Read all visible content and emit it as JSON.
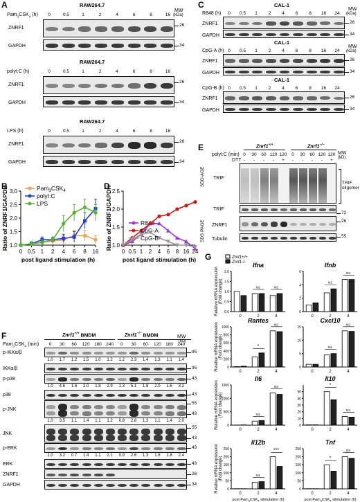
{
  "panelA": {
    "label": "A",
    "cell": "RAW264.7",
    "mw_header": "MW",
    "mw_unit": "(kDa)",
    "rows": [
      {
        "treatment": "Pam3CSK4 (h)",
        "times": [
          "0",
          "0.5",
          "1",
          "2",
          "4",
          "6",
          "8",
          "16"
        ],
        "ladder": [
          "26",
          "34"
        ],
        "intensity": [
          0.35,
          0.4,
          0.45,
          0.5,
          0.55,
          0.65,
          0.7,
          0.65
        ]
      },
      {
        "treatment": "polyI:C (h)",
        "times": [
          "0",
          "0.5",
          "1",
          "2",
          "4",
          "6",
          "8",
          "16"
        ],
        "ladder": [
          "26",
          "34"
        ],
        "intensity": [
          0.3,
          0.3,
          0.35,
          0.4,
          0.4,
          0.45,
          0.75,
          0.8
        ]
      },
      {
        "treatment": "LPS (h)",
        "times": [
          "0",
          "0.5",
          "1",
          "2",
          "4",
          "6",
          "8",
          "16"
        ],
        "ladder": [
          "26",
          "34"
        ],
        "intensity": [
          0.3,
          0.35,
          0.4,
          0.45,
          0.75,
          0.9,
          0.9,
          0.8
        ]
      }
    ],
    "znrf1": "ZNRF1",
    "gapdh": "GAPDH"
  },
  "panelB": {
    "label": "B",
    "ylabel": "Ratio of ZNRF1/GAPDH",
    "xlabel": "post ligand stimulation (h)",
    "yticks": [
      "1.0",
      "1.5",
      "2.0",
      "2.5",
      "3.0"
    ],
    "xticks": [
      "0",
      "0.5",
      "1",
      "2",
      "4",
      "6",
      "8",
      "16"
    ]
  },
  "panelC": {
    "label": "C",
    "cell": "CAL-1",
    "mw_header": "MW",
    "mw_unit": "(kDa)",
    "rows": [
      {
        "treatment": "R848 (h)",
        "times": [
          "0",
          "0.5",
          "1",
          "2",
          "4",
          "6",
          "8",
          "16",
          "24"
        ],
        "ladder": [
          "26",
          "34"
        ],
        "intensity": [
          0.3,
          0.35,
          0.4,
          0.6,
          0.7,
          0.6,
          0.5,
          0.45,
          0.4
        ]
      },
      {
        "treatment": "CpG-A (h)",
        "times": [
          "0",
          "0.5",
          "1",
          "2",
          "4",
          "6",
          "8",
          "16",
          "24"
        ],
        "ladder": [
          "26",
          "34"
        ],
        "intensity": [
          0.5,
          0.55,
          0.6,
          0.65,
          0.7,
          0.7,
          0.75,
          0.8,
          0.8
        ]
      },
      {
        "treatment": "CpG-B (h)",
        "times": [
          "0",
          "0.5",
          "1",
          "2",
          "4",
          "6",
          "8",
          "16",
          "24"
        ],
        "ladder": [
          "26",
          "34"
        ],
        "intensity": [
          0.5,
          0.55,
          0.6,
          0.6,
          0.55,
          0.5,
          0.5,
          0.45,
          0.4
        ]
      }
    ],
    "znrf1": "ZNRF1",
    "gapdh": "GAPDH"
  },
  "panelD": {
    "label": "D",
    "ylabel": "Ratio of ZNRF1/GAPDH",
    "xlabel": "post ligand stimulation (h)",
    "yticks": [
      "1.0",
      "1.5",
      "2.0",
      "2.5"
    ],
    "xticks": [
      "0",
      "0.5",
      "1",
      "2",
      "4",
      "6",
      "8",
      "16",
      "24"
    ]
  },
  "panelE": {
    "label": "E",
    "wt": "Znrf1+/+",
    "ko": "Znrf1-/-",
    "treat": "polyI:C (min)",
    "dtt": "DTT",
    "times": [
      "0",
      "30",
      "60",
      "120",
      "120",
      "0",
      "30",
      "60",
      "120",
      "120"
    ],
    "dtt_vals": [
      "-",
      "-",
      "-",
      "-",
      "+",
      "-",
      "-",
      "-",
      "-",
      "+"
    ],
    "mw_header": "MW",
    "mw_unit": "(kD)",
    "sdd": "SDD-AGE",
    "sds": "SDS PAGE",
    "trif": "TRIF",
    "oligomer": "TRIF oligomer",
    "znrf1": "ZNRF1",
    "tubulin": "Tubulin",
    "ladder": [
      "72",
      "26",
      "55"
    ]
  },
  "panelF": {
    "label": "F",
    "treat": "Pam3CSK4 (min)",
    "wt": "Znrf1+/+ BMDM",
    "ko": "Znrf1-/- BMDM",
    "mw_header": "MW",
    "mw_unit": "(kD)",
    "times": [
      "0",
      "30",
      "60",
      "120",
      "180",
      "240",
      "0",
      "30",
      "60",
      "120",
      "180",
      "240"
    ],
    "blots": [
      {
        "name": "p-IKKα/β",
        "quant": [
          "1.0",
          "1.7",
          "1.2",
          "1.5",
          "1.0",
          "1.2",
          "1.2",
          "2.3",
          "1.4",
          "1.3",
          "1.1",
          "1.4"
        ],
        "mw": [
          "95"
        ],
        "intensity": [
          0.2,
          0.5,
          0.25,
          0.25,
          0.2,
          0.2,
          0.2,
          0.5,
          0.25,
          0.2,
          0.2,
          0.2
        ]
      },
      {
        "name": "IKKα/β",
        "quant": [],
        "mw": [
          "95"
        ],
        "intensity": [
          0.8,
          0.8,
          0.8,
          0.8,
          0.8,
          0.8,
          0.8,
          0.8,
          0.8,
          0.8,
          0.8,
          0.8
        ]
      },
      {
        "name": "p-p38",
        "quant": [
          "1.0",
          "4.6",
          "1.6",
          "2.0",
          "1.8",
          "2.9",
          "1.3",
          "5.1",
          "1.8",
          "2.0",
          "1.6",
          "3.2"
        ],
        "mw": [
          "43"
        ],
        "intensity": [
          0.15,
          0.9,
          0.4,
          0.4,
          0.35,
          0.5,
          0.15,
          0.9,
          0.4,
          0.4,
          0.35,
          0.5
        ]
      },
      {
        "name": "p38",
        "quant": [],
        "mw": [
          "43"
        ],
        "intensity": [
          0.8,
          0.8,
          0.8,
          0.8,
          0.8,
          0.8,
          0.8,
          0.8,
          0.8,
          0.8,
          0.8,
          0.8
        ]
      },
      {
        "name": "p-JNK",
        "quant": [
          "1.0",
          "3.5",
          "1.1",
          "1.4",
          "1.1",
          "1.2",
          "0.8",
          "2.8",
          "1.3",
          "1.1",
          "1.4",
          "2.0"
        ],
        "mw": [
          "55",
          "43"
        ],
        "intensity": [
          0.15,
          0.9,
          0.3,
          0.35,
          0.3,
          0.3,
          0.15,
          0.9,
          0.3,
          0.3,
          0.35,
          0.4
        ]
      },
      {
        "name": "JNK",
        "quant": [],
        "mw": [
          "55",
          "43"
        ],
        "intensity": [
          0.8,
          0.8,
          0.8,
          0.8,
          0.8,
          0.8,
          0.8,
          0.8,
          0.8,
          0.8,
          0.8,
          0.8
        ]
      },
      {
        "name": "p-ERK",
        "quant": [
          "1.0",
          "3.2",
          "0.7",
          "1.4",
          "1.1",
          "2.1",
          "0.9",
          "2.6",
          "1.3",
          "1.6",
          "1.8",
          "2.4"
        ],
        "mw": [
          "43"
        ],
        "intensity": [
          0.2,
          0.85,
          0.2,
          0.35,
          0.3,
          0.4,
          0.2,
          0.7,
          0.3,
          0.35,
          0.35,
          0.5
        ]
      },
      {
        "name": "ERK",
        "quant": [],
        "mw": [
          "43"
        ],
        "intensity": [
          0.8,
          0.8,
          0.8,
          0.8,
          0.8,
          0.8,
          0.8,
          0.8,
          0.8,
          0.8,
          0.8,
          0.8
        ]
      },
      {
        "name": "ZNRF1",
        "quant": [],
        "mw": [
          "26"
        ],
        "intensity": [
          0.6,
          0.6,
          0.65,
          0.65,
          0.7,
          0.7,
          0,
          0,
          0,
          0,
          0,
          0
        ]
      },
      {
        "name": "GAPDH",
        "quant": [],
        "mw": [
          "34"
        ],
        "intensity": [
          0.8,
          0.8,
          0.8,
          0.8,
          0.8,
          0.8,
          0.8,
          0.8,
          0.8,
          0.8,
          0.8,
          0.8
        ]
      }
    ]
  },
  "panelG": {
    "label": "G",
    "ylabel1": "Relative mRNA expression",
    "ylabel2": "(Fold change)",
    "legend_wt": "Znrf1+/+",
    "legend_ko": "Znrf1-/-",
    "xlabel": "post Pam3CSK4 stimulation (h)",
    "xticks": [
      "0",
      "2",
      "4"
    ],
    "genes": [
      "Ifna",
      "Ifnb",
      "Rantes",
      "Cxcl10",
      "Il6",
      "Il10",
      "Il12b",
      "Tnf"
    ],
    "sig": [
      "NS",
      "*",
      "***"
    ]
  },
  "chart_data": [
    {
      "type": "line",
      "panel": "B",
      "x": [
        "0",
        "0.5",
        "1",
        "2",
        "4",
        "6",
        "8",
        "16"
      ],
      "xlabel": "post ligand stimulation (h)",
      "ylabel": "Ratio of ZNRF1/GAPDH",
      "ylim": [
        1.0,
        3.0
      ],
      "legend": "top-left",
      "series": [
        {
          "name": "Pam3CSK4",
          "color": "#f0a050",
          "values": [
            1.0,
            1.05,
            1.1,
            1.15,
            1.2,
            1.35,
            1.35,
            1.2
          ],
          "err": [
            0.05,
            0.08,
            0.1,
            0.12,
            0.15,
            0.2,
            0.2,
            0.15
          ]
        },
        {
          "name": "polyI:C",
          "color": "#1f3fd0",
          "values": [
            1.0,
            1.05,
            1.2,
            1.2,
            1.25,
            1.3,
            1.9,
            2.35
          ],
          "err": [
            0.05,
            0.08,
            0.1,
            0.1,
            0.15,
            0.2,
            0.3,
            0.35
          ]
        },
        {
          "name": "LPS",
          "color": "#5ab030",
          "values": [
            1.0,
            1.05,
            1.1,
            1.2,
            1.8,
            2.2,
            2.4,
            2.2
          ],
          "err": [
            0.05,
            0.08,
            0.1,
            0.1,
            0.3,
            0.3,
            0.3,
            0.3
          ]
        }
      ]
    },
    {
      "type": "line",
      "panel": "D",
      "x": [
        "0",
        "0.5",
        "1",
        "2",
        "4",
        "6",
        "8",
        "16",
        "24"
      ],
      "xlabel": "post ligand stimulation (h)",
      "ylabel": "Ratio of ZNRF1/GAPDH",
      "ylim": [
        1.0,
        2.5
      ],
      "legend": "bottom-left",
      "series": [
        {
          "name": "R848",
          "color": "#a030d0",
          "values": [
            1.0,
            1.1,
            1.3,
            1.6,
            1.6,
            1.4,
            1.2,
            1.1,
            0.9
          ]
        },
        {
          "name": "CpG-A",
          "color": "#d01515",
          "values": [
            1.0,
            1.2,
            1.4,
            1.6,
            1.8,
            1.85,
            2.0,
            2.1,
            2.2
          ]
        },
        {
          "name": "CpG-B",
          "color": "#999999",
          "values": [
            1.0,
            1.15,
            1.3,
            1.35,
            1.2,
            1.1,
            1.0,
            1.0,
            0.95
          ]
        }
      ]
    },
    {
      "type": "bar",
      "panel": "G",
      "x": [
        "0",
        "2",
        "4"
      ],
      "xlabel": "post Pam3CSK4 stimulation (h)",
      "ylabel": "Relative mRNA expression (Fold change)",
      "subplots": [
        {
          "title": "Ifna",
          "ylim": [
            0,
            2
          ],
          "yticks": [
            "0.0",
            "0.5",
            "1.0",
            "1.5",
            "2.0"
          ],
          "wt": [
            1.0,
            0.9,
            0.8
          ],
          "ko": [
            0.8,
            0.9,
            0.9
          ],
          "sig": [
            "",
            "NS",
            "NS"
          ]
        },
        {
          "title": "Ifnb",
          "ylim": [
            0,
            6
          ],
          "yticks": [
            "0",
            "2",
            "4",
            "6"
          ],
          "wt": [
            1.0,
            2.8,
            4.8
          ],
          "ko": [
            1.3,
            3.4,
            4.8
          ],
          "sig": [
            "",
            "NS",
            "NS"
          ]
        },
        {
          "title": "Rantes",
          "ylim": [
            0,
            1000
          ],
          "yticks": [
            "0",
            "200",
            "400",
            "600",
            "800",
            "1000"
          ],
          "wt": [
            10,
            250,
            900
          ],
          "ko": [
            20,
            350,
            880
          ],
          "sig": [
            "",
            "*",
            "NS"
          ]
        },
        {
          "title": "Cxcl10",
          "ylim": [
            0,
            15
          ],
          "yticks": [
            "0",
            "5",
            "10",
            "15"
          ],
          "wt": [
            1.0,
            4.5,
            13.5
          ],
          "ko": [
            1.0,
            5.0,
            13.3
          ],
          "sig": [
            "",
            "NS",
            "NS"
          ]
        },
        {
          "title": "Il6",
          "ylim": [
            0,
            1500
          ],
          "yticks": [
            "0",
            "500",
            "1000",
            "1500"
          ],
          "wt": [
            5,
            150,
            1200
          ],
          "ko": [
            10,
            170,
            1150
          ],
          "sig": [
            "",
            "NS",
            "NS"
          ]
        },
        {
          "title": "Il10",
          "ylim": [
            0,
            60
          ],
          "yticks": [
            "0",
            "10",
            "20",
            "30",
            "40",
            "50"
          ],
          "wt": [
            0.5,
            50,
            13
          ],
          "ko": [
            0.5,
            38,
            12
          ],
          "sig": [
            "",
            "*",
            "NS"
          ]
        },
        {
          "title": "Il12b",
          "ylim": [
            0,
            250
          ],
          "yticks": [
            "0",
            "50",
            "100",
            "150",
            "200",
            "250"
          ],
          "wt": [
            1,
            40,
            200
          ],
          "ko": [
            1,
            45,
            140
          ],
          "sig": [
            "",
            "NS",
            "***"
          ]
        },
        {
          "title": "Tnf",
          "ylim": [
            0,
            250
          ],
          "yticks": [
            "0",
            "50",
            "100",
            "150",
            "200",
            "250"
          ],
          "wt": [
            1,
            150,
            200
          ],
          "ko": [
            1,
            110,
            190
          ],
          "sig": [
            "",
            "*",
            "NS"
          ]
        }
      ]
    }
  ]
}
